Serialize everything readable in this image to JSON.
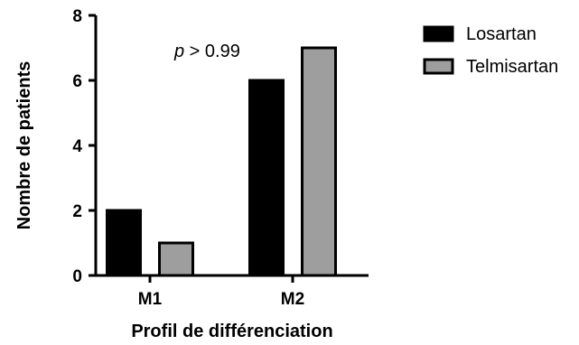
{
  "chart_data": {
    "type": "bar",
    "categories": [
      "M1",
      "M2"
    ],
    "series": [
      {
        "name": "Losartan",
        "values": [
          2,
          6
        ],
        "color": "#000000"
      },
      {
        "name": "Telmisartan",
        "values": [
          1,
          7
        ],
        "color": "#9e9e9e"
      }
    ],
    "xlabel": "Profil de différenciation",
    "ylabel": "Nombre de patients",
    "ylim": [
      0,
      8
    ],
    "yticks": [
      "0",
      "2",
      "4",
      "6",
      "8"
    ],
    "grid": false,
    "legend_position": "top-right",
    "annotation": {
      "symbol": "p",
      "text": " > 0.99"
    }
  }
}
